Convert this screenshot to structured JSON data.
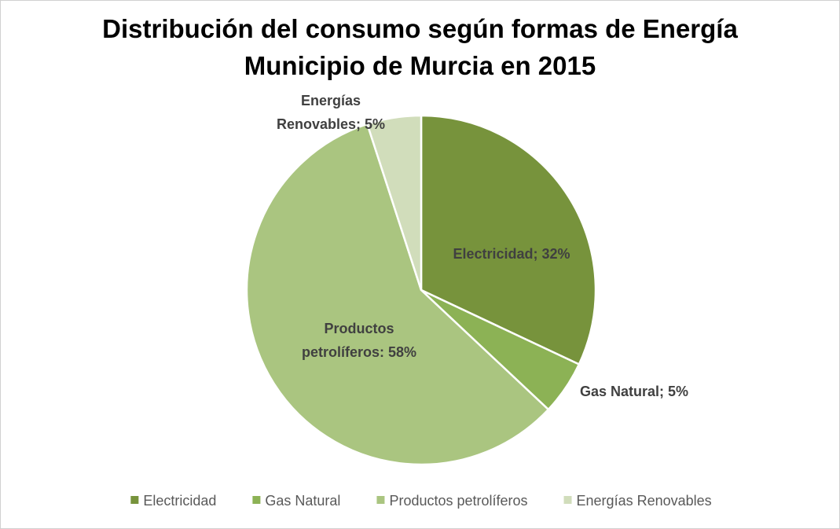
{
  "chart_data": {
    "type": "pie",
    "title": "Distribución del consumo según formas de Energía Municipio de Murcia en 2015",
    "categories": [
      "Electricidad",
      "Gas Natural",
      "Productos petrolíferos",
      "Energías Renovables"
    ],
    "values": [
      32,
      5,
      58,
      5
    ],
    "value_labels": [
      "Electricidad; 32%",
      "Gas Natural; 5%",
      "Productos petrolíferos: 58%",
      "Energías Renovables; 5%"
    ],
    "colors": [
      "#77933c",
      "#8cb255",
      "#aac580",
      "#d1ddbb"
    ],
    "legend": "bottom"
  }
}
